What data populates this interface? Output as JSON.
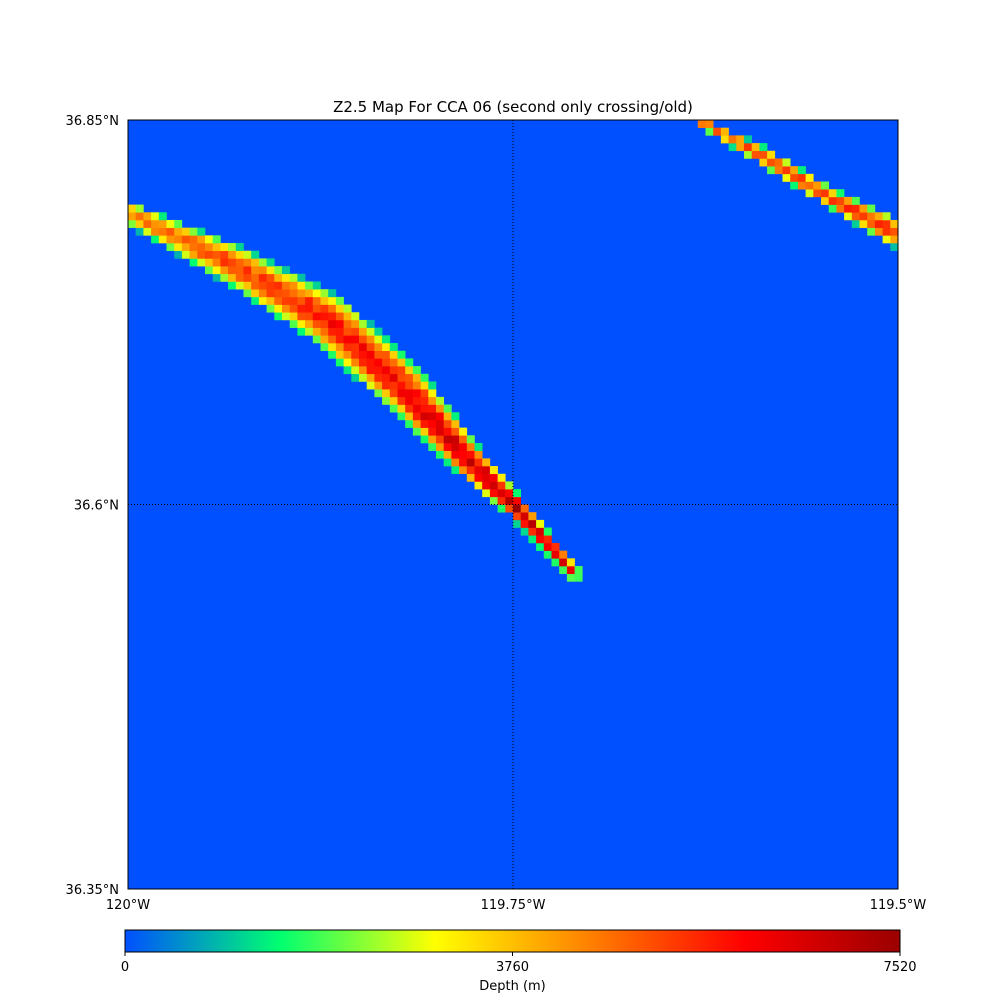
{
  "chart_data": {
    "type": "heatmap",
    "title": "Z2.5 Map For CCA 06 (second only crossing/old)",
    "xlim": [
      -120.0,
      -119.5
    ],
    "ylim": [
      36.35,
      36.85
    ],
    "x_ticks": [
      {
        "value": -120.0,
        "label": "120°W"
      },
      {
        "value": -119.75,
        "label": "119.75°W"
      },
      {
        "value": -119.5,
        "label": "119.5°W"
      }
    ],
    "y_ticks": [
      {
        "value": 36.85,
        "label": "36.85°N"
      },
      {
        "value": 36.6,
        "label": "36.6°N"
      },
      {
        "value": 36.35,
        "label": "36.35°N"
      }
    ],
    "grid": "dotted at tick positions",
    "background_value": 0,
    "colorbar": {
      "label": "Depth (m)",
      "min": 0,
      "max": 7520,
      "ticks": [
        {
          "value": 0,
          "label": "0"
        },
        {
          "value": 3760,
          "label": "3760"
        },
        {
          "value": 7520,
          "label": "7520"
        }
      ],
      "colormap": [
        "#0050ff",
        "#00ff70",
        "#ffff00",
        "#ff8000",
        "#ff0000",
        "#9a0000"
      ]
    },
    "bands": [
      {
        "name": "",
        "path": [
          [
            -120.0,
            36.79
          ],
          [
            -119.93,
            36.755
          ],
          [
            -119.87,
            36.72
          ],
          [
            -119.82,
            36.675
          ],
          [
            -119.78,
            36.63
          ],
          [
            -119.75,
            36.6
          ],
          [
            -119.71,
            36.555
          ]
        ],
        "half_width_deg": [
          0.007,
          0.013,
          0.017,
          0.016,
          0.011,
          0.007,
          0.004
        ],
        "peak_depth_m": [
          4600,
          5300,
          5800,
          6100,
          6800,
          7400,
          6200
        ]
      },
      {
        "name": "",
        "path": [
          [
            -119.63,
            36.85
          ],
          [
            -119.585,
            36.825
          ],
          [
            -119.545,
            36.8
          ],
          [
            -119.5,
            36.776
          ]
        ],
        "half_width_deg": [
          0.003,
          0.006,
          0.006,
          0.009
        ],
        "peak_depth_m": [
          5000,
          5200,
          5400,
          5500
        ]
      }
    ]
  }
}
